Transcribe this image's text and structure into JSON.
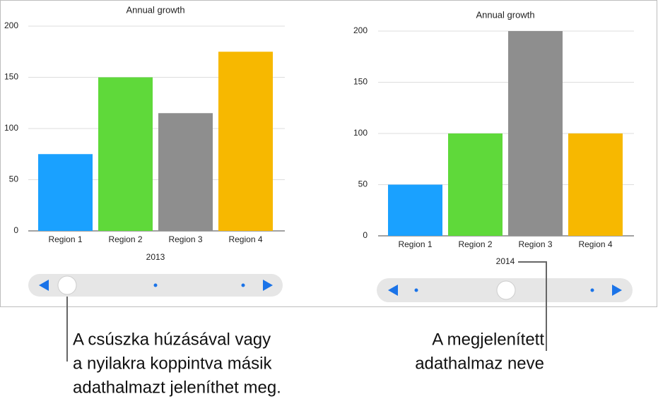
{
  "chart_data": [
    {
      "type": "bar",
      "title": "Annual growth",
      "xlabel": "2013",
      "categories": [
        "Region 1",
        "Region 2",
        "Region 3",
        "Region 4"
      ],
      "values": [
        75,
        150,
        115,
        175
      ],
      "colors": [
        "#1aa1ff",
        "#5fd93a",
        "#8e8e8e",
        "#f7b800"
      ],
      "ylim": [
        0,
        200
      ],
      "yticks": [
        0,
        50,
        100,
        150,
        200
      ],
      "grid": true
    },
    {
      "type": "bar",
      "title": "Annual growth",
      "xlabel": "2014",
      "categories": [
        "Region 1",
        "Region 2",
        "Region 3",
        "Region 4"
      ],
      "values": [
        50,
        100,
        200,
        100
      ],
      "colors": [
        "#1aa1ff",
        "#5fd93a",
        "#8e8e8e",
        "#f7b800"
      ],
      "ylim": [
        0,
        200
      ],
      "yticks": [
        0,
        50,
        100,
        150,
        200
      ],
      "grid": true
    }
  ],
  "callouts": [
    {
      "lines": [
        "A csúszka húzásával vagy",
        "a nyilakra koppintva másik",
        "adathalmazt jeleníthet meg."
      ]
    },
    {
      "lines": [
        "A megjelenített",
        "adathalmaz neve"
      ]
    }
  ]
}
